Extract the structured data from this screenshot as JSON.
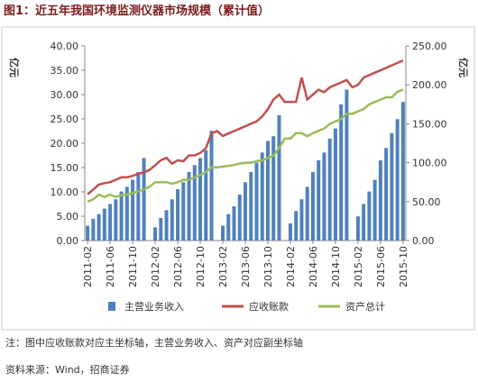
{
  "chart_data": {
    "type": "bar_line",
    "title": "图1：近五年我国环境监测仪器市场规模（累计值）",
    "y_label": "亿元",
    "y2_label": "亿元",
    "categories": [
      "2011-02",
      null,
      null,
      null,
      "2011-06",
      null,
      null,
      null,
      "2011-10",
      null,
      null,
      null,
      "2012-02",
      null,
      null,
      null,
      "2012-06",
      null,
      null,
      null,
      "2012-10",
      null,
      null,
      null,
      "2013-02",
      null,
      null,
      null,
      "2013-06",
      null,
      null,
      null,
      "2013-10",
      null,
      null,
      null,
      "2014-02",
      null,
      null,
      null,
      "2014-06",
      null,
      null,
      null,
      "2014-10",
      null,
      null,
      null,
      "2015-02",
      null,
      null,
      null,
      "2015-06",
      null,
      null,
      null,
      "2015-10"
    ],
    "series": [
      {
        "name": "主营业务收入",
        "kind": "bar",
        "axis": "y2",
        "color": "#4f81bd",
        "values": [
          19,
          28,
          34,
          41,
          47,
          53,
          63,
          69,
          78,
          88,
          106,
          null,
          17,
          29,
          39,
          53,
          66,
          75,
          88,
          97,
          106,
          116,
          141,
          null,
          19,
          34,
          44,
          59,
          75,
          88,
          100,
          113,
          128,
          134,
          161,
          null,
          22,
          38,
          53,
          69,
          88,
          103,
          113,
          131,
          144,
          175,
          194,
          null,
          31,
          47,
          63,
          78,
          103,
          119,
          138,
          156,
          178
        ]
      },
      {
        "name": "应收账款",
        "kind": "line",
        "axis": "y",
        "color": "#c0504d",
        "values": [
          9.5,
          10.5,
          11.5,
          11.8,
          12,
          12.5,
          13,
          13,
          13.3,
          13.7,
          14,
          14.5,
          15.5,
          16.5,
          17,
          15.8,
          16.5,
          16.3,
          17.5,
          17.5,
          18,
          19,
          22,
          22.5,
          21.5,
          22,
          22.5,
          23,
          23.5,
          24,
          24.5,
          25.5,
          27,
          29,
          30,
          28.5,
          28.5,
          28.5,
          33.5,
          29,
          30,
          31,
          30.5,
          31.5,
          32,
          32.5,
          33,
          31.5,
          32,
          33.5,
          34,
          34.5,
          35,
          35.5,
          36,
          36.5,
          37
        ]
      },
      {
        "name": "资产总计",
        "kind": "line",
        "axis": "y2",
        "color": "#9bbb59",
        "values": [
          50,
          53,
          59,
          56,
          59,
          56,
          58,
          59,
          61,
          63,
          66,
          69,
          75,
          75,
          75,
          73,
          75,
          78,
          78,
          81,
          84,
          88,
          94,
          94,
          95,
          96,
          97,
          99,
          100,
          100,
          102,
          103,
          106,
          109,
          119,
          131,
          131,
          138,
          138,
          134,
          138,
          141,
          144,
          150,
          153,
          156,
          163,
          163,
          166,
          169,
          175,
          178,
          181,
          184,
          184,
          191,
          194
        ]
      }
    ],
    "ylim": [
      0,
      40
    ],
    "yticks": [
      {
        "value": 0,
        "label": "0.00"
      },
      {
        "value": 5,
        "label": "5.00"
      },
      {
        "value": 10,
        "label": "10.00"
      },
      {
        "value": 15,
        "label": "15.00"
      },
      {
        "value": 20,
        "label": "20.00"
      },
      {
        "value": 25,
        "label": "25.00"
      },
      {
        "value": 30,
        "label": "30.00"
      },
      {
        "value": 35,
        "label": "35.00"
      },
      {
        "value": 40,
        "label": "40.00"
      }
    ],
    "y2lim": [
      0,
      250
    ],
    "y2ticks": [
      {
        "value": 0,
        "label": "0.00"
      },
      {
        "value": 50,
        "label": "50.00"
      },
      {
        "value": 100,
        "label": "100.00"
      },
      {
        "value": 150,
        "label": "150.00"
      },
      {
        "value": 200,
        "label": "200.00"
      },
      {
        "value": 250,
        "label": "250.00"
      }
    ],
    "note": "注：图中应收账款对应主坐标轴，主营业务收入、资产对应副坐标轴",
    "source": "资料来源：Wind，招商证券"
  }
}
